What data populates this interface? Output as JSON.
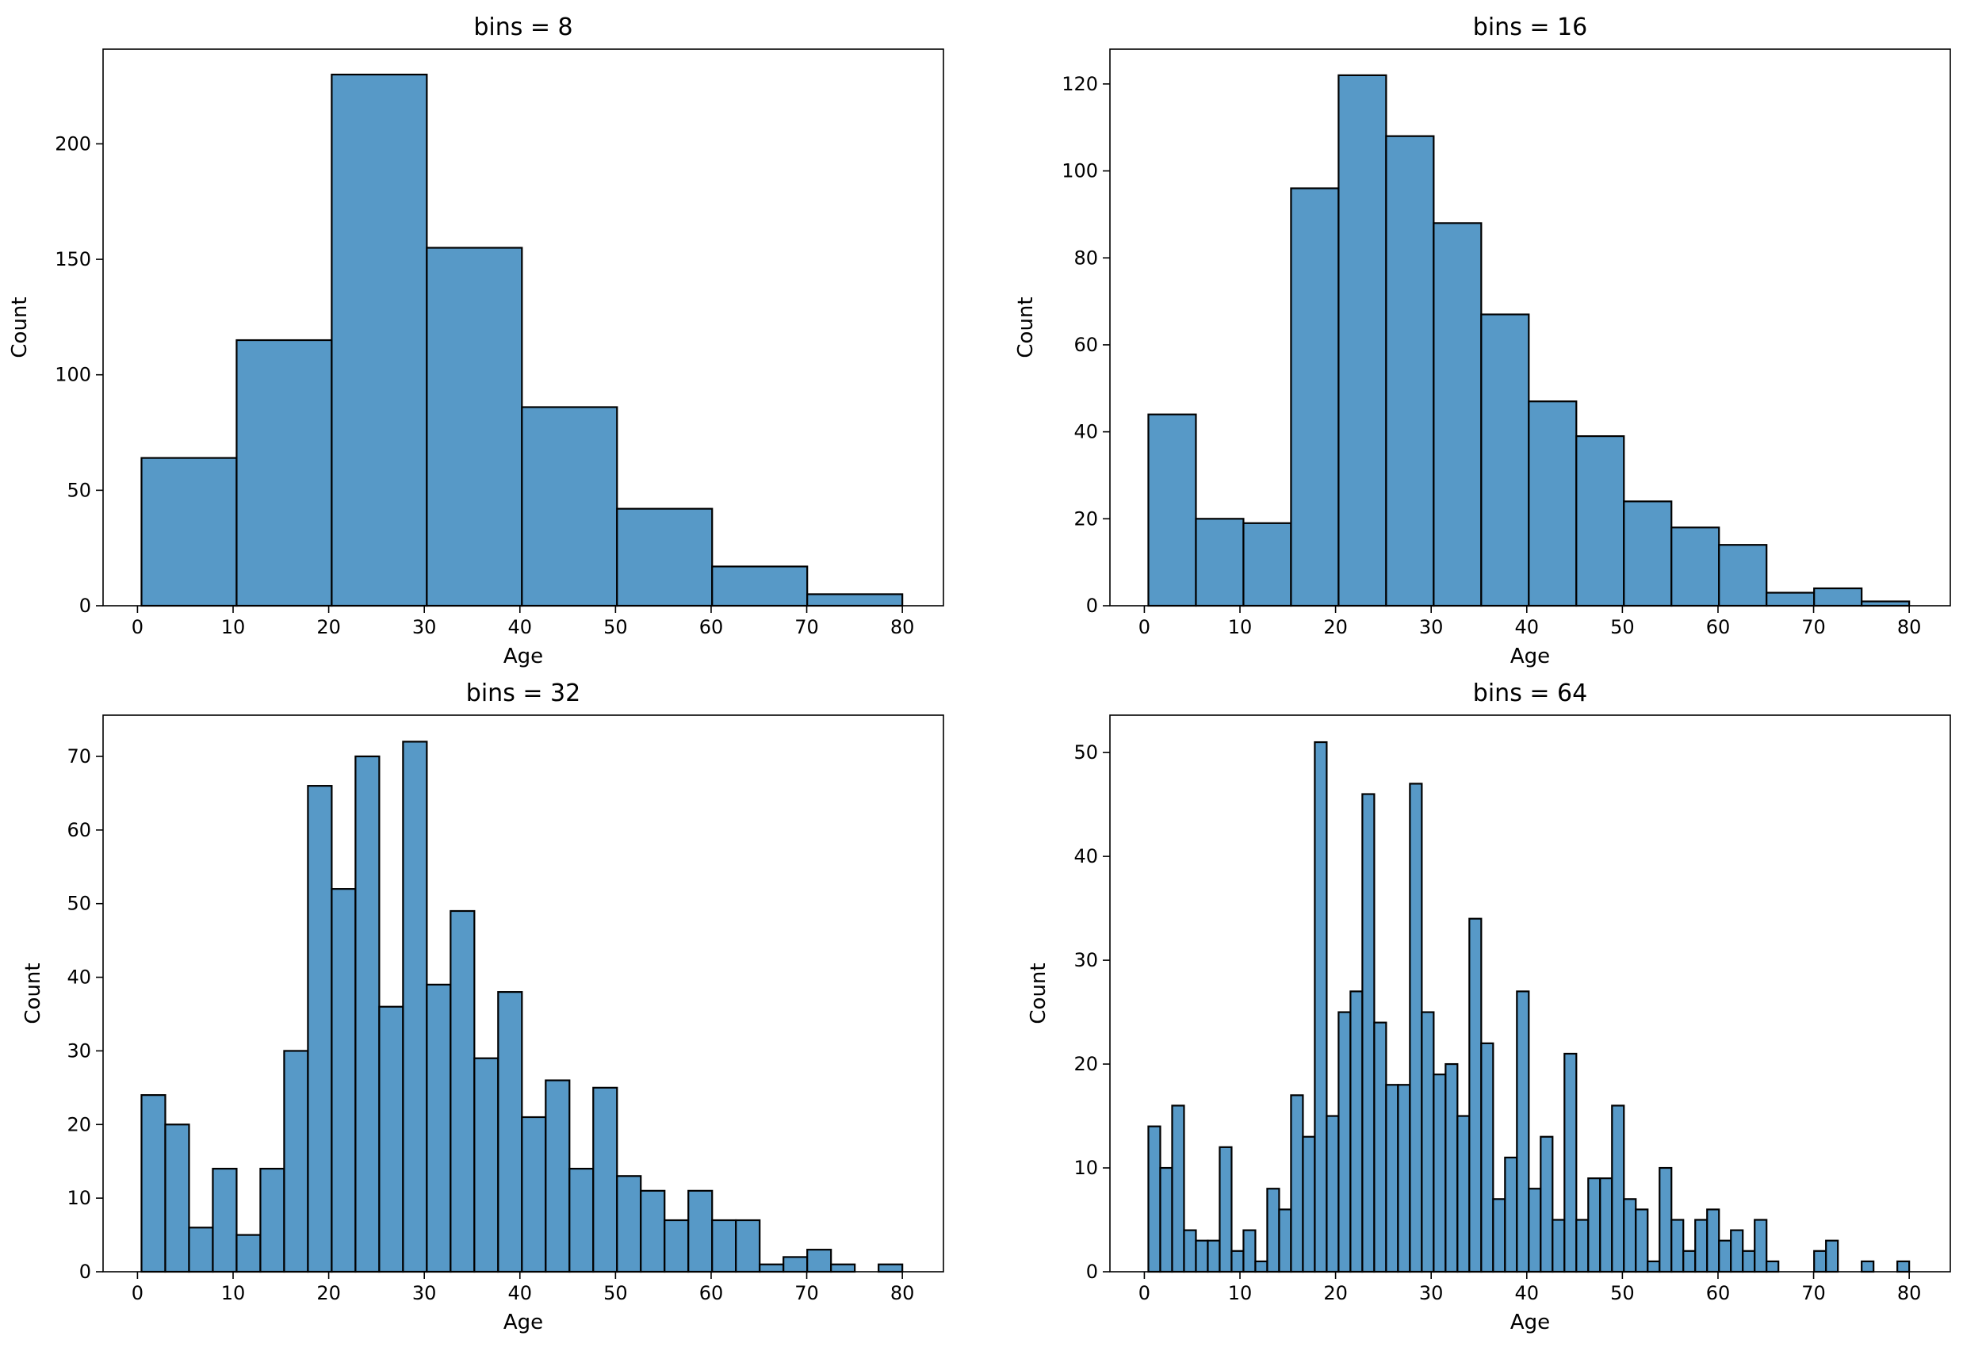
{
  "chart_data": [
    {
      "type": "bar",
      "title": "bins = 8",
      "xlabel": "Age",
      "ylabel": "Count",
      "xlim": [
        -3.6,
        84.3
      ],
      "ylim": [
        0,
        241
      ],
      "xticks": [
        0,
        10,
        20,
        30,
        40,
        50,
        60,
        70,
        80
      ],
      "yticks": [
        0,
        50,
        100,
        150,
        200
      ],
      "bin_start": 0.42,
      "bin_width": 9.9475,
      "values": [
        64,
        115,
        230,
        155,
        86,
        42,
        17,
        5
      ]
    },
    {
      "type": "bar",
      "title": "bins = 16",
      "xlabel": "Age",
      "ylabel": "Count",
      "xlim": [
        -3.6,
        84.3
      ],
      "ylim": [
        0,
        128
      ],
      "xticks": [
        0,
        10,
        20,
        30,
        40,
        50,
        60,
        70,
        80
      ],
      "yticks": [
        0,
        20,
        40,
        60,
        80,
        100,
        120
      ],
      "bin_start": 0.42,
      "bin_width": 4.97375,
      "values": [
        44,
        20,
        19,
        96,
        122,
        108,
        88,
        67,
        47,
        39,
        24,
        18,
        14,
        3,
        4,
        1
      ]
    },
    {
      "type": "bar",
      "title": "bins = 32",
      "xlabel": "Age",
      "ylabel": "Count",
      "xlim": [
        -3.6,
        84.3
      ],
      "ylim": [
        0,
        75.6
      ],
      "xticks": [
        0,
        10,
        20,
        30,
        40,
        50,
        60,
        70,
        80
      ],
      "yticks": [
        0,
        10,
        20,
        30,
        40,
        50,
        60,
        70
      ],
      "bin_start": 0.42,
      "bin_width": 2.486875,
      "values": [
        24,
        20,
        6,
        14,
        5,
        14,
        30,
        66,
        52,
        70,
        36,
        72,
        39,
        49,
        29,
        38,
        21,
        26,
        14,
        25,
        13,
        11,
        7,
        11,
        7,
        7,
        1,
        2,
        3,
        1,
        0,
        1
      ]
    },
    {
      "type": "bar",
      "title": "bins = 64",
      "xlabel": "Age",
      "ylabel": "Count",
      "xlim": [
        -3.6,
        84.3
      ],
      "ylim": [
        0,
        53.6
      ],
      "xticks": [
        0,
        10,
        20,
        30,
        40,
        50,
        60,
        70,
        80
      ],
      "yticks": [
        0,
        10,
        20,
        30,
        40,
        50
      ],
      "bin_start": 0.42,
      "bin_width": 1.2434375,
      "values": [
        14,
        10,
        16,
        4,
        3,
        3,
        12,
        2,
        4,
        1,
        8,
        6,
        17,
        13,
        51,
        15,
        25,
        27,
        46,
        24,
        18,
        18,
        47,
        25,
        19,
        20,
        15,
        34,
        22,
        7,
        11,
        27,
        8,
        13,
        5,
        21,
        5,
        9,
        9,
        16,
        7,
        6,
        1,
        10,
        5,
        2,
        5,
        6,
        3,
        4,
        2,
        5,
        1,
        0,
        0,
        0,
        2,
        3,
        0,
        0,
        1,
        0,
        0,
        1
      ]
    }
  ],
  "colors": {
    "bar_fill": "#5799c7",
    "bar_edge": "#000000",
    "axes": "#000000",
    "background": "#ffffff"
  }
}
